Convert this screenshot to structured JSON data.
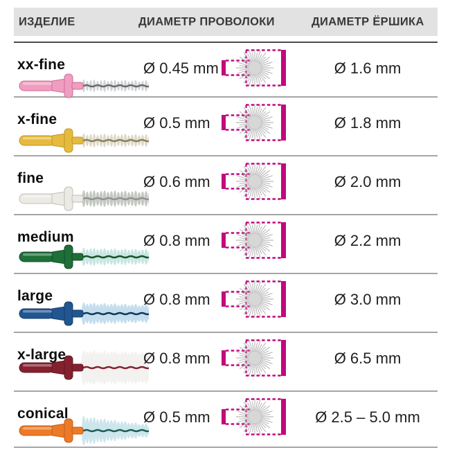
{
  "header": {
    "col_product": "ИЗДЕЛИЕ",
    "col_wire": "ДИАМЕТР ПРОВОЛОКИ",
    "col_brush": "ДИАМЕТР ЁРШИКА"
  },
  "colors": {
    "accent_magenta": "#c1087d",
    "header_bg": "#e2e2e2",
    "header_text": "#383838",
    "header_line": "#4a4a4a",
    "row_separator": "#a5a5a5",
    "starburst_rays": "#a9a9a9",
    "starburst_hub_fill": "#d7d7d7",
    "starburst_hub_stroke": "#c0c0c0"
  },
  "rows": [
    {
      "name": "xx-fine",
      "wire_diameter": "Ø 0.45 mm",
      "brush_diameter": "Ø 1.6 mm",
      "brush_style": "thin",
      "colors": {
        "handle": "#ef9ec0",
        "handle_dark": "#cf6a9a",
        "bristles": "#c9ced2",
        "core": "#6a6a6a"
      }
    },
    {
      "name": "x-fine",
      "wire_diameter": "Ø 0.5 mm",
      "brush_diameter": "Ø 1.8 mm",
      "brush_style": "xfine",
      "colors": {
        "handle": "#e5ba3e",
        "handle_dark": "#c29620",
        "bristles": "#d9d3bf",
        "core": "#85805f"
      }
    },
    {
      "name": "fine",
      "wire_diameter": "Ø 0.6 mm",
      "brush_diameter": "Ø 2.0 mm",
      "brush_style": "fine",
      "colors": {
        "handle": "#eceae5",
        "handle_dark": "#c2bfb8",
        "bristles": "#bcc0bb",
        "core": "#8f948f"
      }
    },
    {
      "name": "medium",
      "wire_diameter": "Ø 0.8 mm",
      "brush_diameter": "Ø 2.2 mm",
      "brush_style": "medium",
      "colors": {
        "handle": "#1e6f38",
        "handle_dark": "#134e27",
        "bristles": "#bfe2dd",
        "core": "#17502c"
      }
    },
    {
      "name": "large",
      "wire_diameter": "Ø 0.8 mm",
      "brush_diameter": "Ø 3.0 mm",
      "brush_style": "large",
      "colors": {
        "handle": "#225691",
        "handle_dark": "#163d69",
        "bristles": "#bcd9ea",
        "core": "#12355c"
      }
    },
    {
      "name": "x-large",
      "wire_diameter": "Ø 0.8 mm",
      "brush_diameter": "Ø 6.5 mm",
      "brush_style": "xlarge",
      "colors": {
        "handle": "#85212f",
        "handle_dark": "#5d1621",
        "bristles": "#f1f0ee",
        "core": "#85212f"
      }
    },
    {
      "name": "conical",
      "wire_diameter": "Ø 0.5 mm",
      "brush_diameter": "Ø 2.5 – 5.0 mm",
      "brush_style": "conical",
      "colors": {
        "handle": "#ec7a28",
        "handle_dark": "#c55d14",
        "bristles": "#c6e2ea",
        "core": "#1d5c55"
      }
    }
  ]
}
